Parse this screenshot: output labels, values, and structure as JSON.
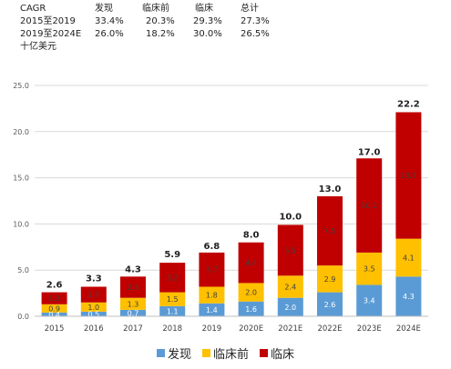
{
  "cagr": {
    "label": "CAGR",
    "headers": [
      "发现",
      "临床前",
      "临床",
      "总计"
    ],
    "rows": [
      {
        "period": "2015至2019",
        "values": [
          "33.4%",
          "20.3%",
          "29.3%",
          "27.3%"
        ]
      },
      {
        "period": "2019至2024E",
        "values": [
          "26.0%",
          "18.2%",
          "30.0%",
          "26.5%"
        ]
      }
    ],
    "unit": "十亿美元"
  },
  "chart_data": {
    "type": "bar",
    "stacked": true,
    "categories": [
      "2015",
      "2016",
      "2017",
      "2018",
      "2019",
      "2020E",
      "2021E",
      "2022E",
      "2023E",
      "2024E"
    ],
    "series": [
      {
        "name": "发现",
        "values": [
          0.4,
          0.5,
          0.7,
          1.1,
          1.4,
          1.6,
          2.0,
          2.6,
          3.4,
          4.3
        ],
        "labels": [
          "0.4",
          "0.5",
          "0.7",
          "1.1",
          "1.4",
          "1.6",
          "2.0",
          "2.6",
          "3.4",
          "4.3"
        ],
        "color": "#5b9bd5"
      },
      {
        "name": "临床前",
        "values": [
          0.9,
          1.0,
          1.3,
          1.5,
          1.8,
          2.0,
          2.4,
          2.9,
          3.5,
          4.1
        ],
        "labels": [
          "0.9",
          "1.0",
          "1.3",
          "1.5",
          "1.8",
          "2.0",
          "2.4",
          "2.9",
          "3.5",
          "4.1"
        ],
        "color": "#ffc000"
      },
      {
        "name": "临床",
        "values": [
          1.3,
          1.7,
          2.3,
          3.2,
          3.7,
          4.4,
          5.5,
          7.5,
          10.2,
          13.7
        ],
        "labels": [
          "1.3",
          "1.7",
          "2.3",
          "3.2",
          "3.7",
          "4.4",
          "5.5",
          "7.5",
          "10.2",
          "13.7"
        ],
        "color": "#c00000"
      }
    ],
    "totals": [
      2.6,
      3.3,
      4.3,
      5.9,
      6.8,
      8.0,
      10.0,
      13.0,
      17.0,
      22.2
    ],
    "total_labels": [
      "2.6",
      "3.3",
      "4.3",
      "5.9",
      "6.8",
      "8.0",
      "10.0",
      "13.0",
      "17.0",
      "22.2"
    ],
    "yticks": [
      "0.0",
      "5.0",
      "10.0",
      "15.0",
      "20.0",
      "25.0"
    ],
    "ylim": [
      0,
      25
    ],
    "grid": true,
    "legend_position": "bottom"
  }
}
